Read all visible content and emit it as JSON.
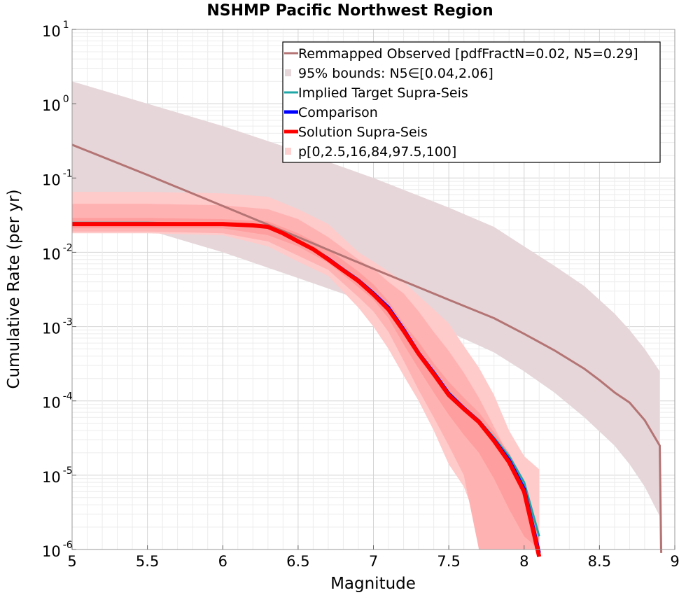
{
  "chart_data": {
    "type": "line",
    "title": "NSHMP Pacific Northwest Region",
    "xlabel": "Magnitude",
    "ylabel": "Cumulative Rate (per yr)",
    "xlim": [
      5,
      9
    ],
    "ylim": [
      1e-06,
      10
    ],
    "yscale": "log",
    "grid": true,
    "legend_position": "top-right",
    "x_ticks": [
      "5",
      "5.5",
      "6",
      "6.5",
      "7",
      "7.5",
      "8",
      "8.5",
      "9"
    ],
    "y_ticks": [
      {
        "base": "10",
        "exp": "-6",
        "value": 1e-06
      },
      {
        "base": "10",
        "exp": "-5",
        "value": 1e-05
      },
      {
        "base": "10",
        "exp": "-4",
        "value": 0.0001
      },
      {
        "base": "10",
        "exp": "-3",
        "value": 0.001
      },
      {
        "base": "10",
        "exp": "-2",
        "value": 0.01
      },
      {
        "base": "10",
        "exp": "-1",
        "value": 0.1
      },
      {
        "base": "10",
        "exp": "0",
        "value": 1
      },
      {
        "base": "10",
        "exp": "1",
        "value": 10
      }
    ],
    "legend": [
      {
        "label": "Remmapped Observed [pdfFractN=0.02, N5=0.29]",
        "kind": "line",
        "color": "#b47474",
        "weight": 3
      },
      {
        "label": "95% bounds: N5∈[0.04,2.06]",
        "kind": "band",
        "color": "#e6d6d9"
      },
      {
        "label": "Implied Target Supra-Seis",
        "kind": "line",
        "color": "#1fa7a7",
        "weight": 3
      },
      {
        "label": "Comparison",
        "kind": "line",
        "color": "#0000ff",
        "weight": 5
      },
      {
        "label": "Solution Supra-Seis",
        "kind": "line",
        "color": "#ff0000",
        "weight": 5
      },
      {
        "label": "p[0,2.5,16,84,97.5,100]",
        "kind": "band",
        "color": "#ffd0d0"
      }
    ],
    "bands": [
      {
        "name": "95% bounds: N5∈[0.04,2.06]",
        "color": "#e6d6d9",
        "opacity": 1,
        "x": [
          5.0,
          5.5,
          6.0,
          6.5,
          7.0,
          7.5,
          7.8,
          8.0,
          8.2,
          8.4,
          8.6,
          8.7,
          8.8,
          8.9
        ],
        "upper": [
          2.0,
          1.0,
          0.5,
          0.23,
          0.1,
          0.04,
          0.022,
          0.012,
          0.0066,
          0.0035,
          0.0015,
          0.0009,
          0.0005,
          0.00025
        ],
        "lower": [
          0.04,
          0.02,
          0.01,
          0.0045,
          0.002,
          0.00085,
          0.00045,
          0.00025,
          0.00013,
          6e-05,
          2.5e-05,
          1.4e-05,
          7e-06,
          2.8e-06
        ]
      },
      {
        "name": "p0-100",
        "color": "#ffcaca",
        "opacity": 1,
        "x": [
          5.0,
          5.5,
          6.0,
          6.3,
          6.5,
          6.7,
          6.9,
          7.0,
          7.1,
          7.2,
          7.3,
          7.4,
          7.5,
          7.6,
          7.7,
          7.8,
          7.9,
          8.0,
          8.1
        ],
        "upper": [
          0.065,
          0.065,
          0.062,
          0.056,
          0.038,
          0.024,
          0.01,
          0.0075,
          0.0055,
          0.004,
          0.0026,
          0.0017,
          0.0011,
          0.00055,
          0.00028,
          0.00012,
          4e-05,
          1.8e-05,
          1.2e-05
        ],
        "lower": [
          0.018,
          0.018,
          0.017,
          0.012,
          0.0075,
          0.0048,
          0.0018,
          0.001,
          0.0005,
          0.00022,
          0.0001,
          4e-05,
          1.4e-05,
          7e-06,
          2e-06,
          1e-06,
          1e-06,
          1e-06,
          1e-06
        ]
      },
      {
        "name": "p2.5-97.5",
        "color": "#ffb2b2",
        "opacity": 1,
        "x": [
          5.0,
          5.5,
          6.0,
          6.3,
          6.5,
          6.7,
          6.9,
          7.0,
          7.1,
          7.2,
          7.3,
          7.4,
          7.5,
          7.6,
          7.7,
          7.8,
          7.9,
          8.0,
          8.1
        ],
        "upper": [
          0.045,
          0.045,
          0.043,
          0.038,
          0.028,
          0.016,
          0.008,
          0.006,
          0.004,
          0.0028,
          0.0016,
          0.00085,
          0.00047,
          0.00024,
          0.00011,
          4.5e-05,
          1.8e-05,
          6.5e-06,
          1.5e-06
        ],
        "lower": [
          0.019,
          0.019,
          0.018,
          0.014,
          0.009,
          0.0058,
          0.0025,
          0.0016,
          0.00085,
          0.00035,
          0.00014,
          6e-05,
          2.5e-05,
          1e-05,
          1e-06,
          1e-06,
          1e-06,
          1e-06,
          1e-06
        ]
      },
      {
        "name": "p16-84",
        "color": "#ff9e9e",
        "opacity": 1,
        "x": [
          5.0,
          5.5,
          6.0,
          6.3,
          6.5,
          6.7,
          6.9,
          7.0,
          7.1,
          7.2,
          7.3,
          7.4,
          7.5,
          7.6,
          7.7,
          7.8,
          7.9,
          8.0,
          8.1
        ],
        "upper": [
          0.029,
          0.029,
          0.028,
          0.026,
          0.018,
          0.011,
          0.0055,
          0.0037,
          0.0022,
          0.0011,
          0.00062,
          0.00032,
          0.00018,
          0.00011,
          7e-05,
          3.8e-05,
          2e-05,
          8.5e-06,
          1.5e-06
        ],
        "lower": [
          0.021,
          0.021,
          0.021,
          0.017,
          0.012,
          0.0072,
          0.0034,
          0.0023,
          0.0013,
          0.00058,
          0.00027,
          0.00013,
          6.5e-05,
          3.5e-05,
          2e-05,
          9e-06,
          3.5e-06,
          1.5e-06,
          1e-06
        ]
      }
    ],
    "series": [
      {
        "name": "Remmapped Observed [pdfFractN=0.02, N5=0.29]",
        "color": "#b47474",
        "width": 3,
        "x": [
          5.0,
          5.5,
          6.0,
          6.5,
          7.0,
          7.5,
          7.8,
          8.0,
          8.2,
          8.4,
          8.5,
          8.6,
          8.7,
          8.8,
          8.9,
          8.91
        ],
        "y": [
          0.28,
          0.11,
          0.042,
          0.016,
          0.006,
          0.0023,
          0.0013,
          0.0008,
          0.00048,
          0.00027,
          0.00019,
          0.00013,
          9.5e-05,
          5.5e-05,
          2.5e-05,
          9e-07
        ]
      },
      {
        "name": "Implied Target Supra-Seis",
        "color": "#1fa7a7",
        "width": 3,
        "x": [
          5.0,
          5.5,
          6.0,
          6.2,
          6.3,
          6.4,
          6.5,
          6.6,
          6.7,
          6.8,
          6.9,
          7.0,
          7.1,
          7.2,
          7.3,
          7.4,
          7.5,
          7.6,
          7.7,
          7.8,
          7.9,
          8.0,
          8.1
        ],
        "y": [
          0.025,
          0.025,
          0.024,
          0.023,
          0.022,
          0.018,
          0.014,
          0.011,
          0.0082,
          0.006,
          0.0043,
          0.0029,
          0.0018,
          0.00095,
          0.00045,
          0.00025,
          0.00013,
          8.2e-05,
          5.5e-05,
          3.2e-05,
          1.8e-05,
          8e-06,
          1.5e-06
        ]
      },
      {
        "name": "Comparison",
        "color": "#0000ff",
        "width": 5,
        "x": [
          5.0,
          5.5,
          6.0,
          6.2,
          6.3,
          6.4,
          6.5,
          6.6,
          6.7,
          6.8,
          6.9,
          7.0,
          7.1,
          7.2,
          7.3,
          7.4,
          7.5,
          7.6,
          7.7,
          7.8,
          7.9,
          8.0,
          8.1
        ],
        "y": [
          0.024,
          0.024,
          0.024,
          0.023,
          0.022,
          0.018,
          0.014,
          0.011,
          0.0082,
          0.0058,
          0.0042,
          0.0028,
          0.0018,
          0.00092,
          0.00044,
          0.00024,
          0.000125,
          8e-05,
          5.3e-05,
          3e-05,
          1.6e-05,
          6.5e-06,
          9e-07
        ]
      },
      {
        "name": "Solution Supra-Seis",
        "color": "#ff0000",
        "width": 6,
        "x": [
          5.0,
          5.5,
          6.0,
          6.2,
          6.3,
          6.4,
          6.5,
          6.6,
          6.7,
          6.8,
          6.9,
          7.0,
          7.1,
          7.2,
          7.3,
          7.4,
          7.5,
          7.6,
          7.7,
          7.8,
          7.9,
          8.0,
          8.1
        ],
        "y": [
          0.024,
          0.024,
          0.024,
          0.023,
          0.022,
          0.018,
          0.014,
          0.011,
          0.008,
          0.0057,
          0.0041,
          0.0027,
          0.0017,
          0.00088,
          0.00043,
          0.00023,
          0.00012,
          7.8e-05,
          5.2e-05,
          2.9e-05,
          1.5e-05,
          6e-06,
          8e-07
        ]
      }
    ]
  }
}
